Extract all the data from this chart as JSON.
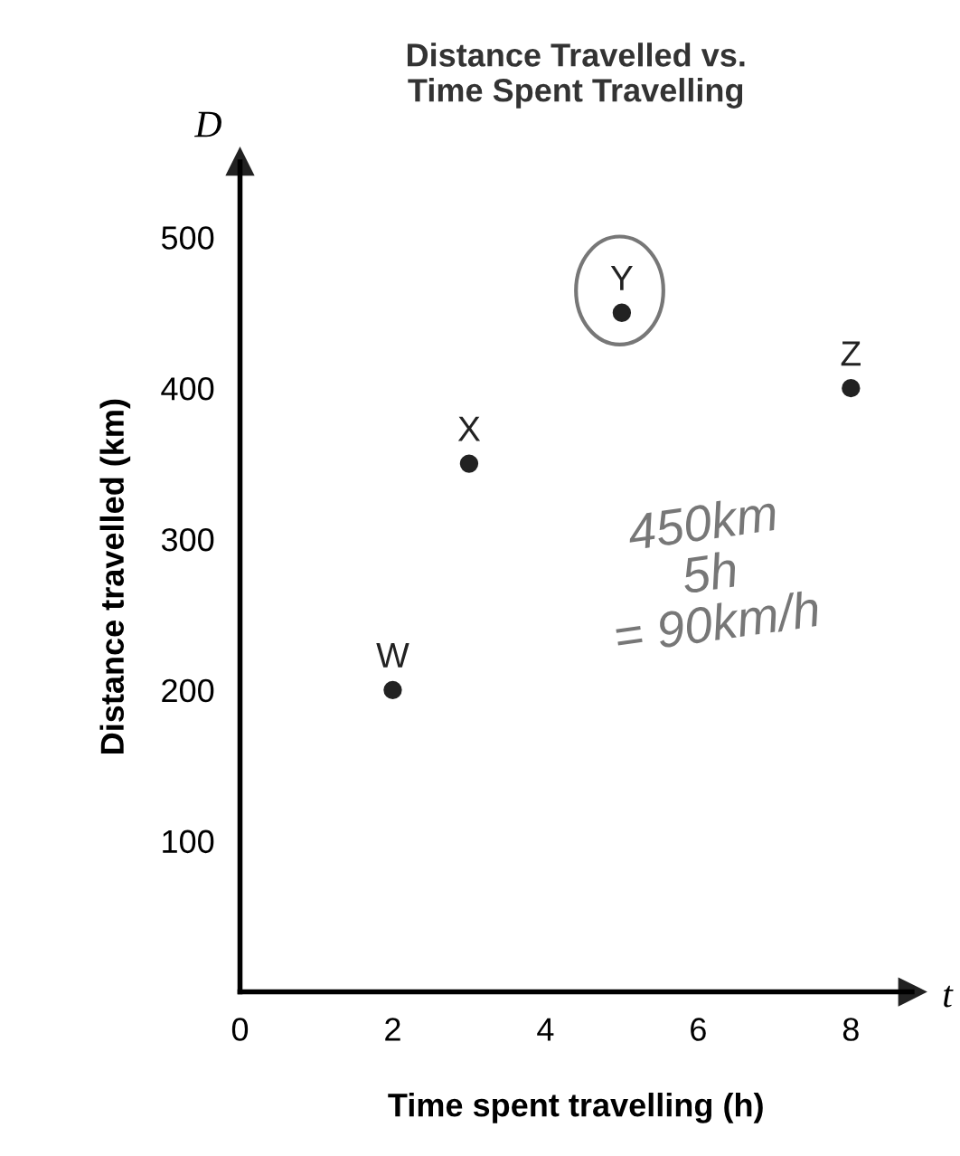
{
  "chart_data": {
    "type": "scatter",
    "title": "Distance Travelled vs.\nTime Spent Travelling",
    "xlabel": "Time spent travelling (h)",
    "ylabel": "Distance travelled (km)",
    "x": [
      2,
      3,
      5,
      8
    ],
    "series": [
      {
        "color": "#222222",
        "values": [
          200,
          350,
          450,
          400
        ]
      }
    ],
    "xlim": [
      0,
      8.8
    ],
    "ylim": [
      0,
      550
    ],
    "xticks": [
      0,
      2,
      4,
      6,
      8
    ],
    "yticks": [
      100,
      200,
      300,
      400,
      500
    ],
    "grid": false,
    "marker": "circle",
    "annotations": [
      {
        "text": "W",
        "x": 2,
        "y": 200
      },
      {
        "text": "X",
        "x": 3,
        "y": 350
      },
      {
        "text": "Y",
        "x": 5,
        "y": 450
      },
      {
        "text": "Z",
        "x": 8,
        "y": 400
      },
      {
        "text": "D",
        "x": 0,
        "y": 550
      },
      {
        "text": "t",
        "x": 8.8,
        "y": 0
      },
      "450km\n5h\n= 90km/h"
    ]
  }
}
